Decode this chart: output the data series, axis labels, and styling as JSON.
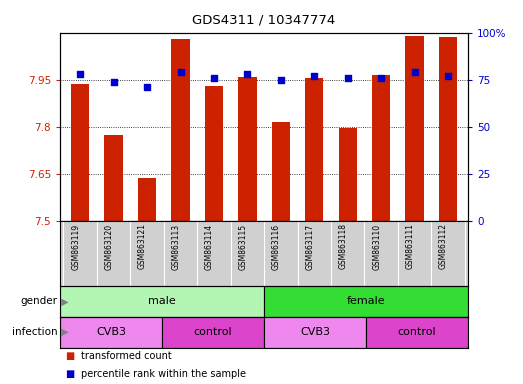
{
  "title": "GDS4311 / 10347774",
  "samples": [
    "GSM863119",
    "GSM863120",
    "GSM863121",
    "GSM863113",
    "GSM863114",
    "GSM863115",
    "GSM863116",
    "GSM863117",
    "GSM863118",
    "GSM863110",
    "GSM863111",
    "GSM863112"
  ],
  "bar_values": [
    7.935,
    7.775,
    7.635,
    8.08,
    7.93,
    7.96,
    7.815,
    7.955,
    7.795,
    7.965,
    8.09,
    8.085
  ],
  "percentile_values": [
    78,
    74,
    71,
    79,
    76,
    78,
    75,
    77,
    76,
    76,
    79,
    77
  ],
  "bar_color": "#cc2200",
  "dot_color": "#0000cc",
  "ylim_left": [
    7.5,
    8.1
  ],
  "ylim_right": [
    0,
    100
  ],
  "yticks_left": [
    7.5,
    7.65,
    7.8,
    7.95
  ],
  "ytick_labels_left": [
    "7.5",
    "7.65",
    "7.8",
    "7.95"
  ],
  "ytick_right_labels": [
    "0",
    "25",
    "50",
    "75",
    "100%"
  ],
  "yticks_right": [
    0,
    25,
    50,
    75,
    100
  ],
  "grid_lines": [
    7.65,
    7.8,
    7.95
  ],
  "gender_groups": [
    {
      "label": "male",
      "start": 0,
      "end": 6,
      "color": "#b3f5b3"
    },
    {
      "label": "female",
      "start": 6,
      "end": 12,
      "color": "#33dd33"
    }
  ],
  "infection_groups": [
    {
      "label": "CVB3",
      "start": 0,
      "end": 3,
      "color": "#ee88ee"
    },
    {
      "label": "control",
      "start": 3,
      "end": 6,
      "color": "#dd44cc"
    },
    {
      "label": "CVB3",
      "start": 6,
      "end": 9,
      "color": "#ee88ee"
    },
    {
      "label": "control",
      "start": 9,
      "end": 12,
      "color": "#dd44cc"
    }
  ],
  "legend_bar_color": "#cc2200",
  "legend_dot_color": "#0000cc",
  "legend_text1": "transformed count",
  "legend_text2": "percentile rank within the sample",
  "bar_width": 0.55,
  "background_color": "#ffffff",
  "left_axis_color": "#cc2200",
  "right_axis_color": "#0000cc",
  "label_bg_color": "#d0d0d0",
  "figwidth": 5.23,
  "figheight": 3.84,
  "dpi": 100
}
